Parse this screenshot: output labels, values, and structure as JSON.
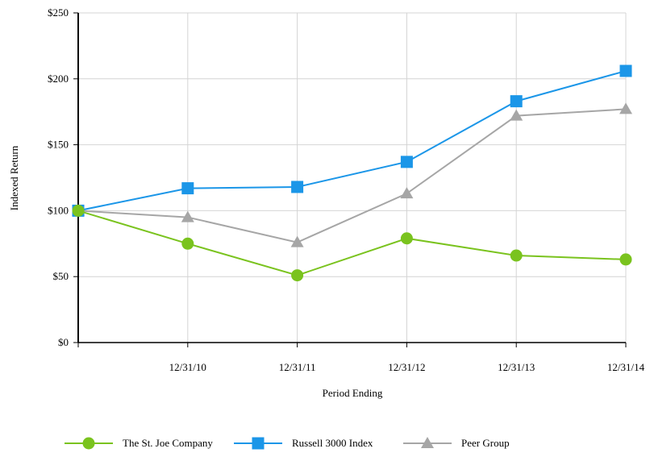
{
  "chart_data": {
    "type": "line",
    "xlabel": "Period Ending",
    "ylabel": "Indexed Return",
    "categories": [
      "",
      "12/31/10",
      "12/31/11",
      "12/31/12",
      "12/31/13",
      "12/31/14"
    ],
    "ylim": [
      0,
      250
    ],
    "yticks": [
      0,
      50,
      100,
      150,
      200,
      250
    ],
    "ytick_labels": [
      "$0",
      "$50",
      "$100",
      "$150",
      "$200",
      "$250"
    ],
    "grid": true,
    "legend_position": "bottom",
    "series": [
      {
        "name": "The St. Joe Company",
        "values": [
          100,
          75,
          51,
          79,
          66,
          63
        ],
        "color": "#7ac31e",
        "marker": "circle"
      },
      {
        "name": "Russell 3000 Index",
        "values": [
          100,
          117,
          118,
          137,
          183,
          206
        ],
        "color": "#1b96e8",
        "marker": "square"
      },
      {
        "name": "Peer Group",
        "values": [
          100,
          95,
          76,
          113,
          172,
          177
        ],
        "color": "#a6a6a6",
        "marker": "triangle"
      }
    ]
  }
}
